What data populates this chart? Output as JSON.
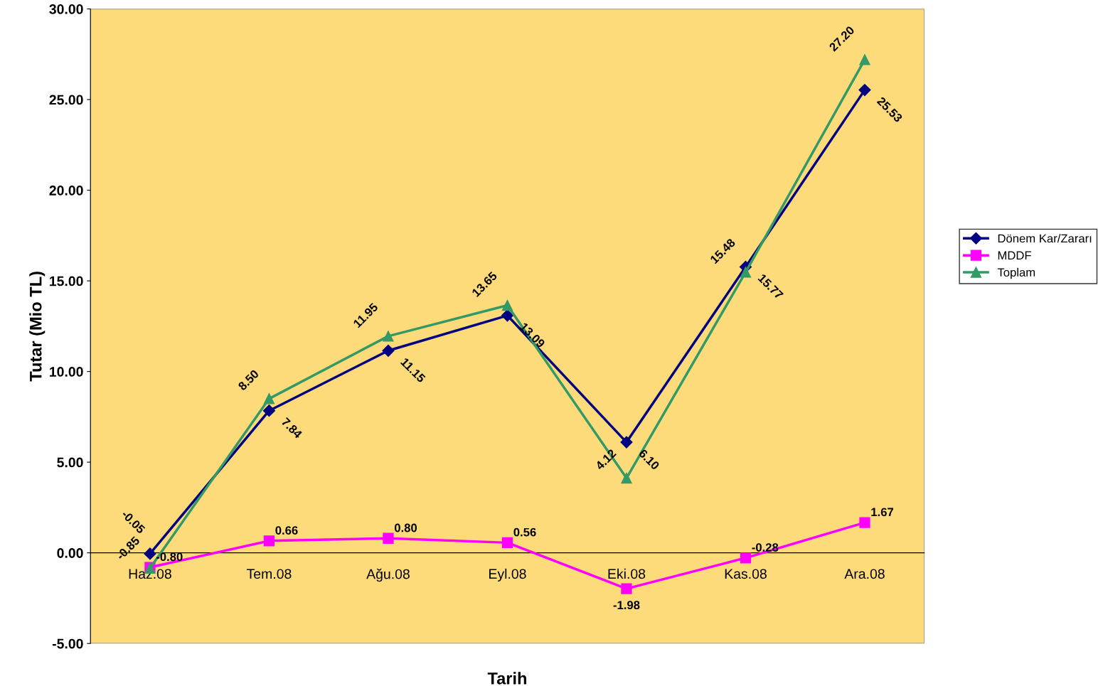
{
  "chart_data": {
    "type": "line",
    "xlabel": "Tarih",
    "ylabel": "Tutar (Mio TL)",
    "categories": [
      "Haz.08",
      "Tem.08",
      "Ağu.08",
      "Eyl.08",
      "Eki.08",
      "Kas.08",
      "Ara.08"
    ],
    "series": [
      {
        "name": "Dönem Kar/Zararı",
        "color": "#000080",
        "marker": "diamond",
        "values": [
          -0.05,
          7.84,
          11.15,
          13.09,
          6.1,
          15.77,
          25.53
        ],
        "value_labels": [
          "-0.05",
          "7.84",
          "11.15",
          "13.09",
          "6.10",
          "15.77",
          "25.53"
        ]
      },
      {
        "name": "MDDF",
        "color": "#ff00ff",
        "marker": "square",
        "values": [
          -0.8,
          0.66,
          0.8,
          0.56,
          -1.98,
          -0.28,
          1.67
        ],
        "value_labels": [
          "-0.80",
          "0.66",
          "0.80",
          "0.56",
          "-1.98",
          "-0.28",
          "1.67"
        ]
      },
      {
        "name": "Toplam",
        "color": "#339966",
        "marker": "triangle",
        "values": [
          -0.85,
          8.5,
          11.95,
          13.65,
          4.12,
          15.48,
          27.2
        ],
        "value_labels": [
          "-0.85",
          "8.50",
          "11.95",
          "13.65",
          "4.12",
          "15.48",
          "27.20"
        ]
      }
    ],
    "ylim": [
      -5,
      30
    ],
    "yticks": [
      {
        "value": -5,
        "label": "-5.00"
      },
      {
        "value": 0,
        "label": "0.00"
      },
      {
        "value": 5,
        "label": "5.00"
      },
      {
        "value": 10,
        "label": "10.00"
      },
      {
        "value": 15,
        "label": "15.00"
      },
      {
        "value": 20,
        "label": "20.00"
      },
      {
        "value": 25,
        "label": "25.00"
      },
      {
        "value": 30,
        "label": "30.00"
      }
    ],
    "grid": false,
    "legend": "right",
    "line_style": "solid"
  }
}
